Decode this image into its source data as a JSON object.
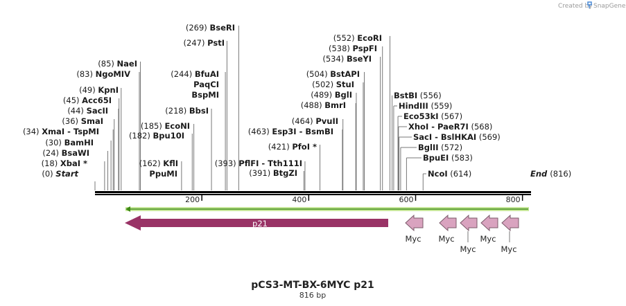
{
  "branding": {
    "created_by": "Created by",
    "product": "SnapGene"
  },
  "map": {
    "name": "pCS3-MT-BX-6MYC p21",
    "length_label": "816 bp",
    "total_bp": 816,
    "ticks": [
      {
        "bp": 200,
        "label": "200"
      },
      {
        "bp": 400,
        "label": "400"
      },
      {
        "bp": 600,
        "label": "600"
      },
      {
        "bp": 800,
        "label": "800"
      }
    ],
    "start_label": {
      "pos": "(0)",
      "name": "Start",
      "bp": 0
    },
    "end_label": {
      "name": "End",
      "pos": "(816)",
      "bp": 816
    },
    "sites_left": [
      {
        "pos": "(18)",
        "name": "XbaI *",
        "bp": 18
      },
      {
        "pos": "(24)",
        "name": "BsaWI",
        "bp": 24
      },
      {
        "pos": "(30)",
        "name": "BamHI",
        "bp": 30
      },
      {
        "pos": "(34)",
        "name": "XmaI",
        "name2": "TspMI",
        "bp": 34
      },
      {
        "pos": "(36)",
        "name": "SmaI",
        "bp": 36
      },
      {
        "pos": "(44)",
        "name": "SacII",
        "bp": 44
      },
      {
        "pos": "(45)",
        "name": "Acc65I",
        "bp": 45
      },
      {
        "pos": "(49)",
        "name": "KpnI",
        "bp": 49
      },
      {
        "pos": "(83)",
        "name": "NgoMIV",
        "bp": 83
      },
      {
        "pos": "(85)",
        "name": "NaeI",
        "bp": 85
      },
      {
        "pos": "(162)",
        "name": "KflI",
        "name2": "PpuMI",
        "bp": 162
      },
      {
        "pos": "(182)",
        "name": "Bpu10I",
        "bp": 182
      },
      {
        "pos": "(185)",
        "name": "EcoNI",
        "bp": 185
      },
      {
        "pos": "(218)",
        "name": "BbsI",
        "bp": 218
      },
      {
        "pos": "(244)",
        "name": "BfuAI",
        "name2": "PaqCI",
        "name3": "BspMI",
        "bp": 244
      },
      {
        "pos": "(247)",
        "name": "PstI",
        "bp": 247
      },
      {
        "pos": "(269)",
        "name": "BseRI",
        "bp": 269
      },
      {
        "pos": "(391)",
        "name": "BtgZI",
        "bp": 391
      },
      {
        "pos": "(393)",
        "name": "PflFI",
        "name2": "Tth111I",
        "bp": 393
      },
      {
        "pos": "(421)",
        "name": "PfoI *",
        "bp": 421
      },
      {
        "pos": "(463)",
        "name": "Esp3I",
        "name2": "BsmBI",
        "bp": 463
      },
      {
        "pos": "(464)",
        "name": "PvuII",
        "bp": 464
      },
      {
        "pos": "(488)",
        "name": "BmrI",
        "bp": 488
      },
      {
        "pos": "(489)",
        "name": "BglI",
        "bp": 489
      },
      {
        "pos": "(502)",
        "name": "StuI",
        "bp": 502
      },
      {
        "pos": "(504)",
        "name": "BstAPI",
        "bp": 504
      },
      {
        "pos": "(534)",
        "name": "BseYI",
        "bp": 534
      },
      {
        "pos": "(538)",
        "name": "PspFI",
        "bp": 538
      },
      {
        "pos": "(552)",
        "name": "EcoRI",
        "bp": 552
      }
    ],
    "sites_right": [
      {
        "name": "BstBI",
        "pos": "(556)",
        "bp": 556
      },
      {
        "name": "HindIII",
        "pos": "(559)",
        "bp": 559
      },
      {
        "name": "Eco53kI",
        "pos": "(567)",
        "bp": 567
      },
      {
        "name": "XhoI",
        "name2": "PaeR7I",
        "pos": "(568)",
        "bp": 568
      },
      {
        "name": "SacI",
        "name2": "BslHKAI",
        "pos": "(569)",
        "bp": 569
      },
      {
        "name": "BglII",
        "pos": "(572)",
        "bp": 572
      },
      {
        "name": "BpuEI",
        "pos": "(583)",
        "bp": 583
      },
      {
        "name": "NcoI",
        "pos": "(614)",
        "bp": 614
      }
    ],
    "features": [
      {
        "name": "p21",
        "direction": "reverse",
        "color": "#993366"
      },
      {
        "name": "Myc",
        "direction": "reverse",
        "color": "#d9a3bf"
      },
      {
        "name": "Myc",
        "direction": "reverse",
        "color": "#d9a3bf"
      },
      {
        "name": "Myc",
        "direction": "reverse",
        "color": "#d9a3bf"
      },
      {
        "name": "Myc",
        "direction": "reverse",
        "color": "#d9a3bf"
      },
      {
        "name": "Myc",
        "direction": "reverse",
        "color": "#d9a3bf"
      }
    ],
    "orf_color": "#a3d65c",
    "logo_color": "#4a8ad6"
  }
}
